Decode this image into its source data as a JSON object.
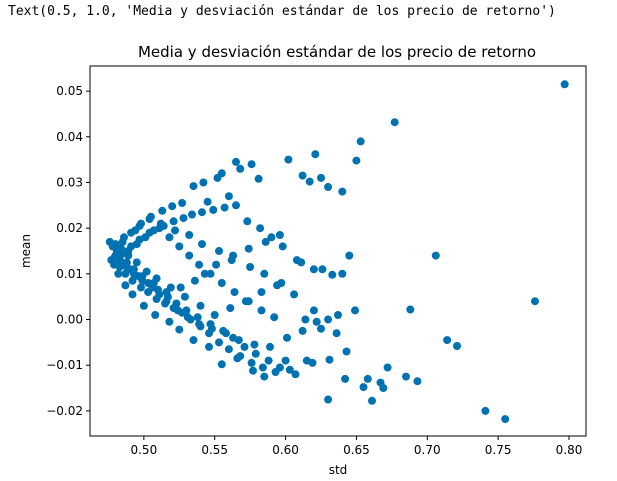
{
  "output_text": "Text(0.5, 1.0, 'Media y desviación estándar de los precio de retorno')",
  "chart_data": {
    "type": "scatter",
    "title": "Media y desviación estándar de los precio de retorno",
    "xlabel": "std",
    "ylabel": "mean",
    "xlim": [
      0.462,
      0.812
    ],
    "ylim": [
      -0.0255,
      0.0555
    ],
    "xticks": [
      0.5,
      0.55,
      0.6,
      0.65,
      0.7,
      0.75,
      0.8
    ],
    "xtick_labels": [
      "0.50",
      "0.55",
      "0.60",
      "0.65",
      "0.70",
      "0.75",
      "0.80"
    ],
    "yticks": [
      -0.02,
      -0.01,
      0.0,
      0.01,
      0.02,
      0.03,
      0.04,
      0.05
    ],
    "ytick_labels": [
      "−0.02",
      "−0.01",
      "0.00",
      "0.01",
      "0.02",
      "0.03",
      "0.04",
      "0.05"
    ],
    "grid": false,
    "point_color": "#0072b2",
    "x": [
      0.797,
      0.677,
      0.653,
      0.621,
      0.602,
      0.576,
      0.565,
      0.568,
      0.555,
      0.552,
      0.612,
      0.64,
      0.65,
      0.617,
      0.625,
      0.63,
      0.581,
      0.542,
      0.535,
      0.56,
      0.545,
      0.527,
      0.52,
      0.513,
      0.505,
      0.498,
      0.494,
      0.486,
      0.478,
      0.48,
      0.484,
      0.49,
      0.496,
      0.503,
      0.51,
      0.517,
      0.523,
      0.53,
      0.538,
      0.547,
      0.556,
      0.563,
      0.571,
      0.579,
      0.588,
      0.596,
      0.607,
      0.619,
      0.63,
      0.642,
      0.661,
      0.706,
      0.688,
      0.714,
      0.721,
      0.776,
      0.741,
      0.755,
      0.655,
      0.667,
      0.643,
      0.631,
      0.615,
      0.6,
      0.585,
      0.577,
      0.566,
      0.555,
      0.546,
      0.535,
      0.525,
      0.518,
      0.508,
      0.5,
      0.492,
      0.487,
      0.482,
      0.479,
      0.483,
      0.489,
      0.495,
      0.501,
      0.507,
      0.514,
      0.521,
      0.528,
      0.534,
      0.541,
      0.549,
      0.557,
      0.565,
      0.573,
      0.582,
      0.59,
      0.598,
      0.608,
      0.62,
      0.633,
      0.645,
      0.672,
      0.685,
      0.693,
      0.63,
      0.62,
      0.606,
      0.597,
      0.585,
      0.575,
      0.562,
      0.553,
      0.541,
      0.532,
      0.522,
      0.512,
      0.504,
      0.497,
      0.491,
      0.485,
      0.481,
      0.477,
      0.488,
      0.493,
      0.499,
      0.506,
      0.511,
      0.516,
      0.524,
      0.531,
      0.539,
      0.548,
      0.558,
      0.567,
      0.578,
      0.589,
      0.601,
      0.612,
      0.622,
      0.637,
      0.649,
      0.658,
      0.669,
      0.64,
      0.626,
      0.611,
      0.594,
      0.583,
      0.572,
      0.561,
      0.55,
      0.54,
      0.529,
      0.519,
      0.509,
      0.502,
      0.495,
      0.489,
      0.484,
      0.48,
      0.476,
      0.482,
      0.487,
      0.492,
      0.498,
      0.503,
      0.509,
      0.515,
      0.521,
      0.527,
      0.533,
      0.54,
      0.546,
      0.553,
      0.56,
      0.568,
      0.576,
      0.584,
      0.593,
      0.603,
      0.614,
      0.625,
      0.636,
      0.596,
      0.586,
      0.574,
      0.563,
      0.551,
      0.543,
      0.536,
      0.526,
      0.516,
      0.507,
      0.499,
      0.493,
      0.488,
      0.483,
      0.479,
      0.485,
      0.491,
      0.497,
      0.504,
      0.511,
      0.518,
      0.525,
      0.532,
      0.539,
      0.547,
      0.555,
      0.564,
      0.574,
      0.583,
      0.592
    ],
    "y": [
      0.0515,
      0.0432,
      0.039,
      0.0362,
      0.035,
      0.034,
      0.0345,
      0.033,
      0.032,
      0.031,
      0.0315,
      0.028,
      0.0348,
      0.0302,
      0.031,
      0.029,
      0.0308,
      0.03,
      0.0292,
      0.027,
      0.0258,
      0.0255,
      0.0248,
      0.0238,
      0.0225,
      0.021,
      0.0195,
      0.018,
      0.016,
      0.014,
      0.0125,
      0.011,
      0.0095,
      0.008,
      0.0065,
      0.005,
      0.0035,
      0.002,
      0.0005,
      -0.001,
      -0.0025,
      -0.004,
      -0.006,
      -0.0075,
      -0.009,
      -0.0105,
      -0.012,
      -0.0095,
      -0.0175,
      -0.013,
      -0.0178,
      0.014,
      0.0022,
      -0.0045,
      -0.0058,
      0.004,
      -0.02,
      -0.0218,
      -0.0148,
      -0.0138,
      -0.007,
      -0.0088,
      -0.009,
      -0.009,
      -0.0125,
      -0.0112,
      -0.0085,
      -0.0098,
      -0.006,
      -0.0045,
      -0.0022,
      -0.0005,
      0.001,
      0.003,
      0.0055,
      0.0075,
      0.01,
      0.012,
      0.0135,
      0.015,
      0.0165,
      0.018,
      0.0195,
      0.0205,
      0.0215,
      0.0222,
      0.023,
      0.0235,
      0.024,
      0.0245,
      0.025,
      0.0215,
      0.02,
      0.018,
      0.016,
      0.013,
      0.011,
      0.0098,
      0.014,
      -0.0105,
      -0.0125,
      -0.0135,
      0.0,
      0.002,
      0.0055,
      0.008,
      0.01,
      0.0115,
      0.013,
      0.015,
      0.0165,
      0.0185,
      0.0195,
      0.021,
      0.022,
      0.0205,
      0.019,
      0.017,
      0.015,
      0.013,
      0.0115,
      0.01,
      0.0085,
      0.007,
      0.0055,
      0.004,
      0.002,
      0.0005,
      -0.001,
      -0.002,
      -0.003,
      -0.0045,
      -0.0055,
      -0.006,
      -0.004,
      -0.0025,
      -0.0005,
      0.001,
      0.002,
      -0.013,
      -0.015,
      0.01,
      0.011,
      0.0125,
      0.0075,
      0.006,
      0.004,
      0.0025,
      0.001,
      0.003,
      0.005,
      0.007,
      0.009,
      0.0105,
      0.0125,
      0.014,
      0.0155,
      0.0165,
      0.017,
      0.012,
      0.01,
      0.0085,
      0.007,
      0.006,
      0.0045,
      0.0035,
      0.0025,
      0.0015,
      0.0,
      -0.0015,
      -0.003,
      -0.005,
      -0.0065,
      -0.008,
      -0.0095,
      -0.0105,
      -0.0115,
      -0.011,
      0.0,
      -0.002,
      -0.003,
      0.0185,
      0.017,
      0.0155,
      0.014,
      0.012,
      0.01,
      0.0085,
      0.007,
      0.006,
      0.008,
      0.0095,
      0.011,
      0.0125,
      0.0115,
      0.0135,
      0.0145,
      0.016,
      0.0175,
      0.019,
      0.02,
      0.018,
      0.016,
      0.014,
      0.012,
      0.01,
      0.008,
      0.006,
      0.004,
      0.002,
      0.0005
    ]
  }
}
